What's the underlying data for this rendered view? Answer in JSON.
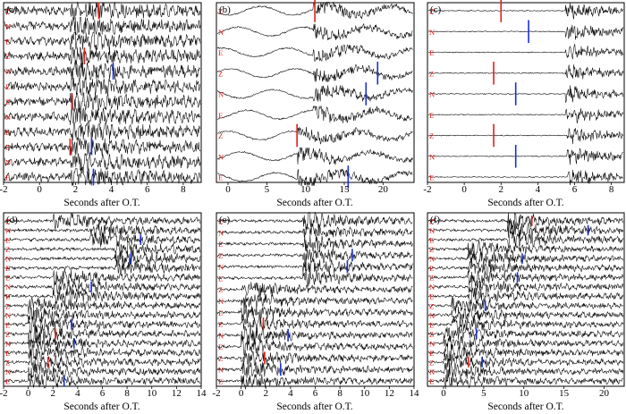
{
  "figure": {
    "xlabel": "Seconds after O.T.",
    "colors": {
      "trace": "#000000",
      "p_pick": "#e0201b",
      "s_pick": "#1b2fd6",
      "channel": "#e0201b",
      "axis": "#000000"
    }
  },
  "chart_data": [
    {
      "type": "line",
      "panel": "(a)",
      "xlim": [
        -2,
        9
      ],
      "xticks": [
        -2,
        0,
        2,
        4,
        6,
        8
      ],
      "xlabel": "Seconds after O.T.",
      "onsets": [
        1.7,
        1.7,
        1.7,
        1.7,
        1.7,
        1.7,
        1.7,
        1.7,
        1.7,
        1.7,
        1.7,
        1.7
      ],
      "channels": [
        "Z",
        "N",
        "E",
        "Z",
        "N",
        "E",
        "Z",
        "N",
        "E",
        "Z",
        "N",
        "E"
      ],
      "p_picks": [
        {
          "trace": 0,
          "t": 3.3
        },
        {
          "trace": 3,
          "t": 2.5
        },
        {
          "trace": 6,
          "t": 1.8
        },
        {
          "trace": 9,
          "t": 1.7
        }
      ],
      "s_picks": [
        {
          "trace": 4,
          "t": 4.1
        },
        {
          "trace": 9,
          "t": 2.9
        },
        {
          "trace": 11,
          "t": 3.0
        }
      ]
    },
    {
      "type": "line",
      "panel": "(b)",
      "xlim": [
        -1.5,
        24
      ],
      "xticks": [
        0,
        5,
        10,
        15,
        20
      ],
      "xlabel": "Seconds after O.T.",
      "onsets": [
        11,
        11,
        11,
        11,
        11,
        11,
        9,
        9,
        9
      ],
      "channels": [
        "Z",
        "N",
        "E",
        "Z",
        "N",
        "E",
        "Z",
        "N",
        "E"
      ],
      "p_picks": [
        {
          "trace": 0,
          "t": 11.2
        },
        {
          "trace": 6,
          "t": 8.9
        }
      ],
      "s_picks": [
        {
          "trace": 3,
          "t": 19.3
        },
        {
          "trace": 4,
          "t": 17.8
        },
        {
          "trace": 8,
          "t": 15.5
        }
      ]
    },
    {
      "type": "line",
      "panel": "(c)",
      "xlim": [
        -2,
        8.7
      ],
      "xticks": [
        -2,
        0,
        2,
        4,
        6,
        8
      ],
      "xlabel": "Seconds after O.T.",
      "onsets": [
        5.5,
        5.5,
        5.5,
        5.5,
        5.5,
        5.5,
        5.6,
        5.6,
        5.6
      ],
      "channels": [
        "Z",
        "N",
        "E",
        "Z",
        "N",
        "E",
        "Z",
        "N",
        "E"
      ],
      "p_picks": [
        {
          "trace": 0,
          "t": 2.0
        },
        {
          "trace": 3,
          "t": 1.6
        },
        {
          "trace": 6,
          "t": 1.6
        }
      ],
      "s_picks": [
        {
          "trace": 1,
          "t": 3.5
        },
        {
          "trace": 4,
          "t": 2.8
        },
        {
          "trace": 7,
          "t": 2.8
        }
      ]
    },
    {
      "type": "line",
      "panel": "(d)",
      "xlim": [
        -2,
        14
      ],
      "xticks": [
        -2,
        0,
        2,
        4,
        6,
        8,
        10,
        12,
        14
      ],
      "xlabel": "Seconds after O.T.",
      "onsets": [
        2,
        5,
        5,
        7,
        7,
        7,
        2,
        2,
        2,
        0,
        0,
        0,
        0,
        0,
        0,
        0,
        0,
        0
      ],
      "channels": [
        "Z",
        "N",
        "E",
        "Z",
        "N",
        "E",
        "Z",
        "N",
        "E",
        "Z",
        "N",
        "E",
        "Z",
        "N",
        "E",
        "Z",
        "N",
        "E"
      ],
      "p_picks": [
        {
          "trace": 12,
          "t": 2.2
        },
        {
          "trace": 15,
          "t": 1.6
        }
      ],
      "s_picks": [
        {
          "trace": 2,
          "t": 9.1
        },
        {
          "trace": 4,
          "t": 8.3
        },
        {
          "trace": 7,
          "t": 5.1
        },
        {
          "trace": 11,
          "t": 3.5
        },
        {
          "trace": 13,
          "t": 3.7
        },
        {
          "trace": 17,
          "t": 2.9
        }
      ]
    },
    {
      "type": "line",
      "panel": "(e)",
      "xlim": [
        -2,
        14
      ],
      "xticks": [
        -2,
        0,
        2,
        4,
        6,
        8,
        10,
        12,
        14
      ],
      "xlabel": "Seconds after O.T.",
      "onsets": [
        5,
        5,
        5,
        5,
        5,
        5,
        0,
        0,
        0,
        0,
        0,
        0,
        0,
        0,
        0
      ],
      "channels": [
        "Z",
        "N",
        "E",
        "Z",
        "N",
        "E",
        "Z",
        "N",
        "E",
        "Z",
        "N",
        "E",
        "Z",
        "N",
        "E"
      ],
      "p_picks": [
        {
          "trace": 9,
          "t": 1.8
        },
        {
          "trace": 12,
          "t": 1.9
        }
      ],
      "s_picks": [
        {
          "trace": 3,
          "t": 9.0
        },
        {
          "trace": 4,
          "t": 8.6
        },
        {
          "trace": 10,
          "t": 3.8
        },
        {
          "trace": 13,
          "t": 3.2
        }
      ]
    },
    {
      "type": "line",
      "panel": "(f)",
      "xlim": [
        -2,
        22.5
      ],
      "xticks": [
        0,
        5,
        10,
        15,
        20
      ],
      "xlabel": "Seconds after O.T.",
      "onsets": [
        8,
        8,
        8,
        3,
        3,
        3,
        3,
        3,
        3,
        1,
        1,
        1,
        0,
        0,
        0,
        0,
        0,
        0
      ],
      "channels": [
        "Z",
        "N",
        "E",
        "Z",
        "N",
        "E",
        "Z",
        "N",
        "E",
        "Z",
        "N",
        "E",
        "Z",
        "N",
        "E",
        "Z",
        "N",
        "E"
      ],
      "p_picks": [
        {
          "trace": 0,
          "t": 11.0
        },
        {
          "trace": 15,
          "t": 3.1
        }
      ],
      "s_picks": [
        {
          "trace": 1,
          "t": 18.0
        },
        {
          "trace": 4,
          "t": 9.8
        },
        {
          "trace": 6,
          "t": 9.2
        },
        {
          "trace": 9,
          "t": 5.2
        },
        {
          "trace": 12,
          "t": 4.1
        },
        {
          "trace": 15,
          "t": 4.8
        }
      ]
    }
  ]
}
